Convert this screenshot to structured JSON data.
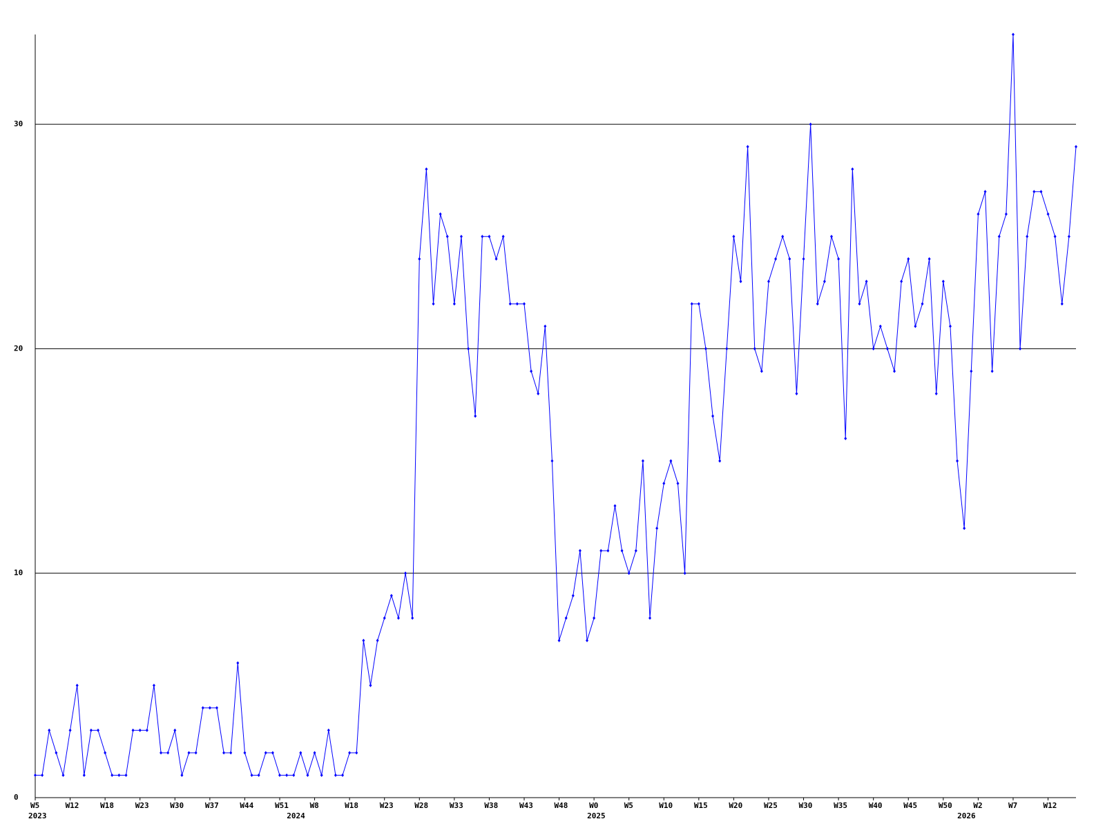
{
  "chart_data": {
    "type": "line",
    "categories": [
      "W5",
      null,
      null,
      null,
      null,
      "W12",
      null,
      null,
      null,
      null,
      "W18",
      null,
      null,
      null,
      null,
      "W23",
      null,
      null,
      null,
      null,
      "W30",
      null,
      null,
      null,
      null,
      "W37",
      null,
      null,
      null,
      null,
      "W44",
      null,
      null,
      null,
      null,
      "W51",
      null,
      null,
      null,
      null,
      "W8",
      null,
      null,
      null,
      null,
      "W18",
      null,
      null,
      null,
      null,
      "W23",
      null,
      null,
      null,
      null,
      "W28",
      null,
      null,
      null,
      null,
      "W33",
      null,
      null,
      null,
      null,
      "W38",
      null,
      null,
      null,
      null,
      "W43",
      null,
      null,
      null,
      null,
      "W48",
      null,
      null,
      null,
      null,
      "W0",
      null,
      null,
      null,
      null,
      "W5",
      null,
      null,
      null,
      null,
      "W10",
      null,
      null,
      null,
      null,
      "W15",
      null,
      null,
      null,
      null,
      "W20",
      null,
      null,
      null,
      null,
      "W25",
      null,
      null,
      null,
      null,
      "W30",
      null,
      null,
      null,
      null,
      "W35",
      null,
      null,
      null,
      null,
      "W40",
      null,
      null,
      null,
      null,
      "W45",
      null,
      null,
      null,
      null,
      "W50",
      null,
      null,
      null,
      null,
      "W2",
      null,
      null,
      null,
      null,
      "W7",
      null,
      null,
      null,
      null,
      "W12",
      null,
      null,
      null,
      null
    ],
    "year_labels": [
      "2023",
      null,
      null,
      null,
      null,
      null,
      null,
      null,
      null,
      null,
      null,
      null,
      null,
      null,
      null,
      null,
      null,
      null,
      null,
      null,
      null,
      null,
      null,
      null,
      null,
      null,
      null,
      null,
      null,
      null,
      null,
      null,
      null,
      null,
      null,
      null,
      null,
      "2024",
      null,
      null,
      null,
      null,
      null,
      null,
      null,
      null,
      null,
      null,
      null,
      null,
      null,
      null,
      null,
      null,
      null,
      null,
      null,
      null,
      null,
      null,
      null,
      null,
      null,
      null,
      null,
      null,
      null,
      null,
      null,
      null,
      null,
      null,
      null,
      null,
      null,
      null,
      null,
      null,
      null,
      null,
      "2025",
      null,
      null,
      null,
      null,
      null,
      null,
      null,
      null,
      null,
      null,
      null,
      null,
      null,
      null,
      null,
      null,
      null,
      null,
      null,
      null,
      null,
      null,
      null,
      null,
      null,
      null,
      null,
      null,
      null,
      null,
      null,
      null,
      null,
      null,
      null,
      null,
      null,
      null,
      null,
      null,
      null,
      null,
      null,
      null,
      null,
      null,
      null,
      null,
      null,
      null,
      null,
      null,
      "2026",
      null,
      null,
      null,
      null,
      null,
      null,
      null,
      null,
      null,
      null,
      null,
      null,
      null,
      null,
      null,
      null
    ],
    "series": [
      {
        "color": "#0000ff",
        "values": [
          1,
          1,
          3,
          2,
          1,
          3,
          5,
          1,
          3,
          3,
          2,
          1,
          1,
          1,
          3,
          3,
          3,
          5,
          2,
          2,
          3,
          1,
          2,
          2,
          4,
          4,
          4,
          2,
          2,
          6,
          2,
          1,
          1,
          2,
          2,
          1,
          1,
          1,
          2,
          1,
          2,
          1,
          3,
          1,
          1,
          2,
          2,
          7,
          5,
          7,
          8,
          9,
          8,
          10,
          8,
          24,
          28,
          22,
          26,
          25,
          22,
          25,
          20,
          17,
          25,
          25,
          24,
          25,
          22,
          22,
          22,
          19,
          18,
          21,
          15,
          7,
          8,
          9,
          11,
          7,
          8,
          11,
          11,
          13,
          11,
          10,
          11,
          15,
          8,
          12,
          14,
          15,
          14,
          10,
          22,
          22,
          20,
          17,
          15,
          20,
          25,
          23,
          29,
          20,
          19,
          23,
          24,
          25,
          24,
          18,
          24,
          30,
          22,
          23,
          25,
          24,
          16,
          28,
          22,
          23,
          20,
          21,
          20,
          19,
          23,
          24,
          21,
          22,
          24,
          18,
          23,
          21,
          15,
          12,
          19,
          26,
          27,
          19,
          25,
          26,
          34,
          20,
          25,
          27,
          27,
          26,
          25,
          22,
          25,
          29
        ]
      }
    ],
    "ylim": [
      0,
      34
    ],
    "yticks": [
      0,
      10,
      20,
      30
    ],
    "grid": true
  }
}
